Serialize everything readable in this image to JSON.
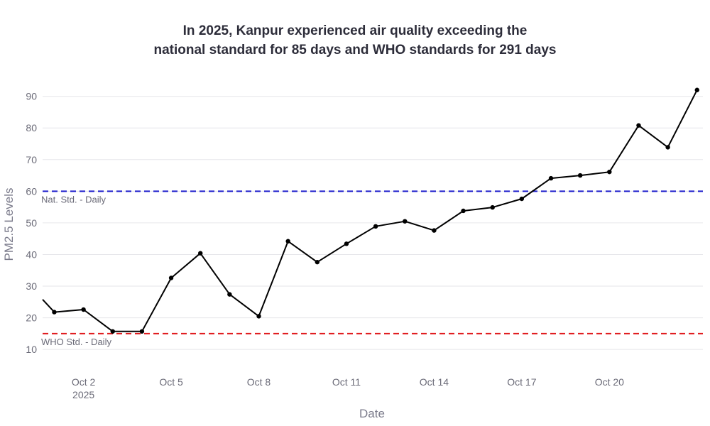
{
  "chart_data": {
    "type": "line",
    "title_line1": "In 2025, Kanpur experienced air quality exceeding the",
    "title_line2": "national standard for 85 days and WHO standards for 291 days",
    "xlabel": "Date",
    "ylabel": "PM2.5 Levels",
    "ylim": [
      6,
      98
    ],
    "yticks": [
      10,
      20,
      30,
      40,
      50,
      60,
      70,
      80,
      90
    ],
    "x_start_day": 0.6,
    "x_end_day": 23.2,
    "xticks": [
      {
        "day": 2,
        "label": "Oct 2",
        "sublabel": "2025"
      },
      {
        "day": 5,
        "label": "Oct 5",
        "sublabel": ""
      },
      {
        "day": 8,
        "label": "Oct 8",
        "sublabel": ""
      },
      {
        "day": 11,
        "label": "Oct 11",
        "sublabel": ""
      },
      {
        "day": 14,
        "label": "Oct 14",
        "sublabel": ""
      },
      {
        "day": 17,
        "label": "Oct 17",
        "sublabel": ""
      },
      {
        "day": 20,
        "label": "Oct 20",
        "sublabel": ""
      }
    ],
    "series": [
      {
        "name": "PM2.5",
        "color": "#000000",
        "x": [
          1,
          2,
          3,
          4,
          5,
          6,
          7,
          8,
          9,
          10,
          11,
          12,
          13,
          14,
          15,
          16,
          17,
          18,
          19,
          20,
          21,
          22,
          23
        ],
        "values": [
          21.8,
          22.6,
          15.7,
          15.7,
          32.6,
          40.4,
          27.4,
          20.5,
          44.2,
          37.6,
          43.4,
          48.9,
          50.5,
          47.6,
          53.8,
          54.9,
          57.6,
          64.1,
          65.0,
          66.1,
          80.8,
          73.9,
          92.0
        ],
        "leading_value": 25.8
      }
    ],
    "reference_lines": [
      {
        "name": "nat-std",
        "value": 60,
        "label": "Nat. Std. - Daily",
        "color": "#1f1fcc"
      },
      {
        "name": "who-std",
        "value": 15,
        "label": "WHO Std. - Daily",
        "color": "#e0191c"
      }
    ],
    "grid": true
  }
}
